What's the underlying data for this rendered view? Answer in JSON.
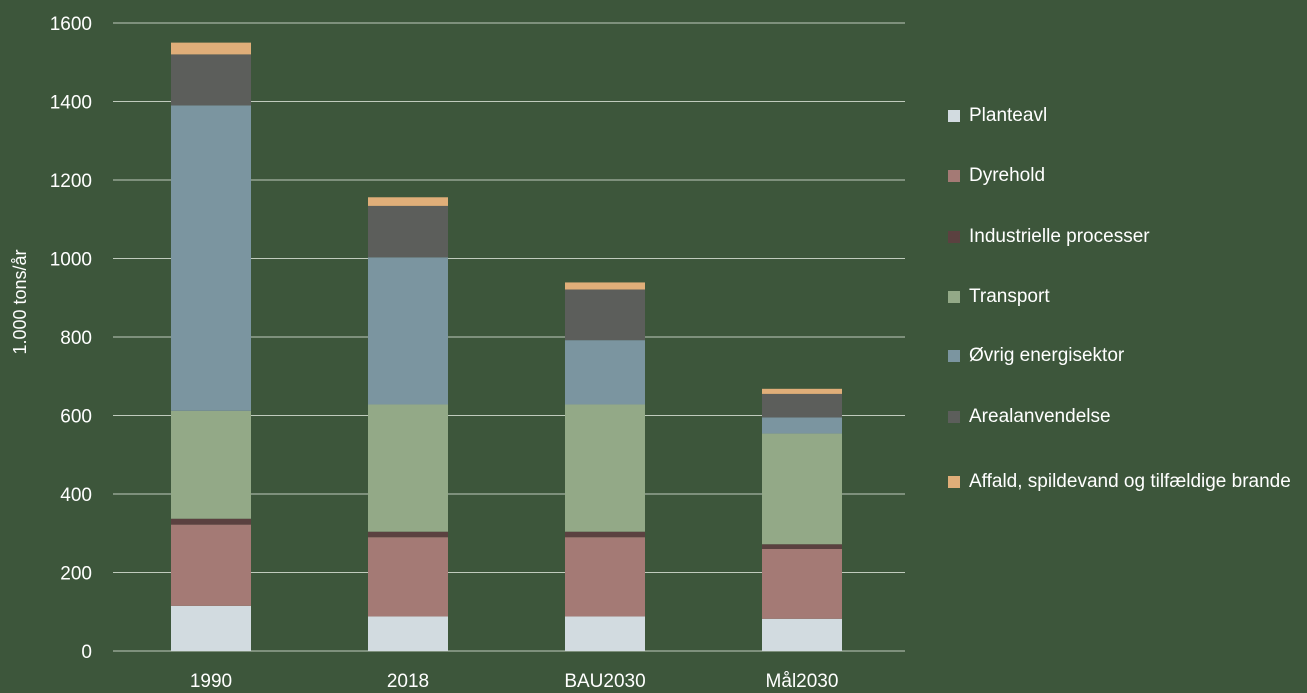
{
  "chart_data": {
    "type": "bar",
    "stacked": true,
    "categories": [
      "1990",
      "2018",
      "BAU2030",
      "Mål2030"
    ],
    "ylabel": "1.000 tons/år",
    "xlabel": "",
    "ylim": [
      0,
      1600
    ],
    "yticks": [
      0,
      200,
      400,
      600,
      800,
      1000,
      1200,
      1400,
      1600
    ],
    "grid": true,
    "legend_position": "right",
    "series": [
      {
        "name": "Planteavl",
        "color": "#d2dbe0",
        "values": [
          115,
          88,
          88,
          82
        ]
      },
      {
        "name": "Dyrehold",
        "color": "#a47a75",
        "values": [
          207,
          202,
          202,
          178
        ]
      },
      {
        "name": "Industrielle processer",
        "color": "#5b4140",
        "values": [
          15,
          14,
          14,
          12
        ]
      },
      {
        "name": "Transport",
        "color": "#93a987",
        "values": [
          275,
          324,
          324,
          282
        ]
      },
      {
        "name": "Øvrig energisektor",
        "color": "#7b95a0",
        "values": [
          778,
          375,
          164,
          41
        ]
      },
      {
        "name": "Arealanvendelse",
        "color": "#5c5e5b",
        "values": [
          130,
          131,
          129,
          60
        ]
      },
      {
        "name": "Affald, spildevand og tilfældige brande",
        "color": "#e0ae79",
        "values": [
          30,
          22,
          18,
          13
        ]
      }
    ]
  }
}
